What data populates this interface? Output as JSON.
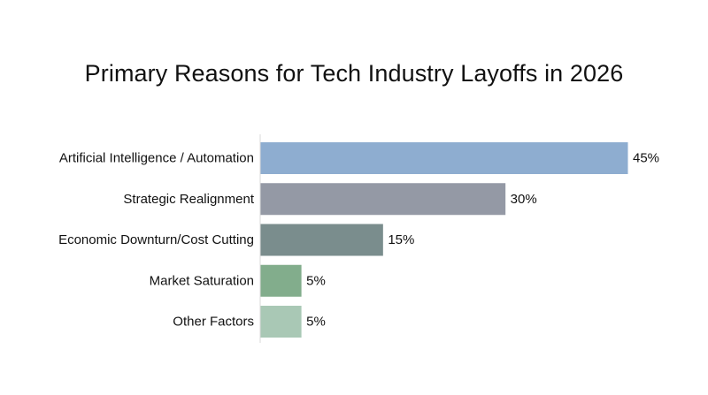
{
  "chart_data": {
    "type": "bar",
    "orientation": "horizontal",
    "title": "Primary Reasons for Tech Industry Layoffs in 2026",
    "xlabel": "",
    "ylabel": "",
    "grid": false,
    "legend": "none",
    "xlim": [
      0,
      45
    ],
    "categories": [
      "Artificial Intelligence / Automation",
      "Strategic Realignment",
      "Economic Downturn/Cost Cutting",
      "Market Saturation",
      "Other Factors"
    ],
    "values": [
      45,
      30,
      15,
      5,
      5
    ],
    "value_labels": [
      "45%",
      "30%",
      "15%",
      "5%",
      "5%"
    ],
    "colors": [
      "#8eadd0",
      "#9499a5",
      "#7a8d8d",
      "#82ad8c",
      "#a9c8b5"
    ]
  }
}
